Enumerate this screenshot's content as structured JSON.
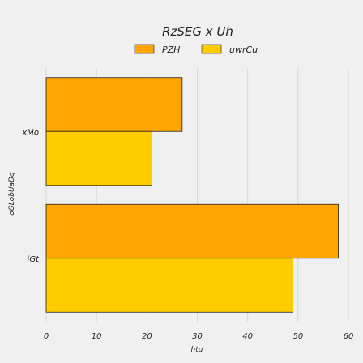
{
  "chart_data": {
    "type": "bar",
    "orientation": "horizontal",
    "title": "RzSEG x Uh",
    "xlabel": "htu",
    "ylabel": "oGLobUaDq",
    "categories": [
      "xMo",
      "iGt"
    ],
    "series": [
      {
        "name": "PZH",
        "values": [
          27,
          58
        ],
        "color": "#ffa500"
      },
      {
        "name": "uwrCu",
        "values": [
          21,
          49
        ],
        "color": "#ffcc00"
      }
    ],
    "xlim": [
      0,
      60
    ],
    "xticks": [
      "0",
      "10",
      "20",
      "30",
      "40",
      "50",
      "60"
    ],
    "grid": true,
    "legend": "top-center",
    "colors": {
      "background": "#f0f0f0",
      "grid": "#d8d8d8",
      "bar_edge": "#222222",
      "text": "#222222"
    }
  }
}
